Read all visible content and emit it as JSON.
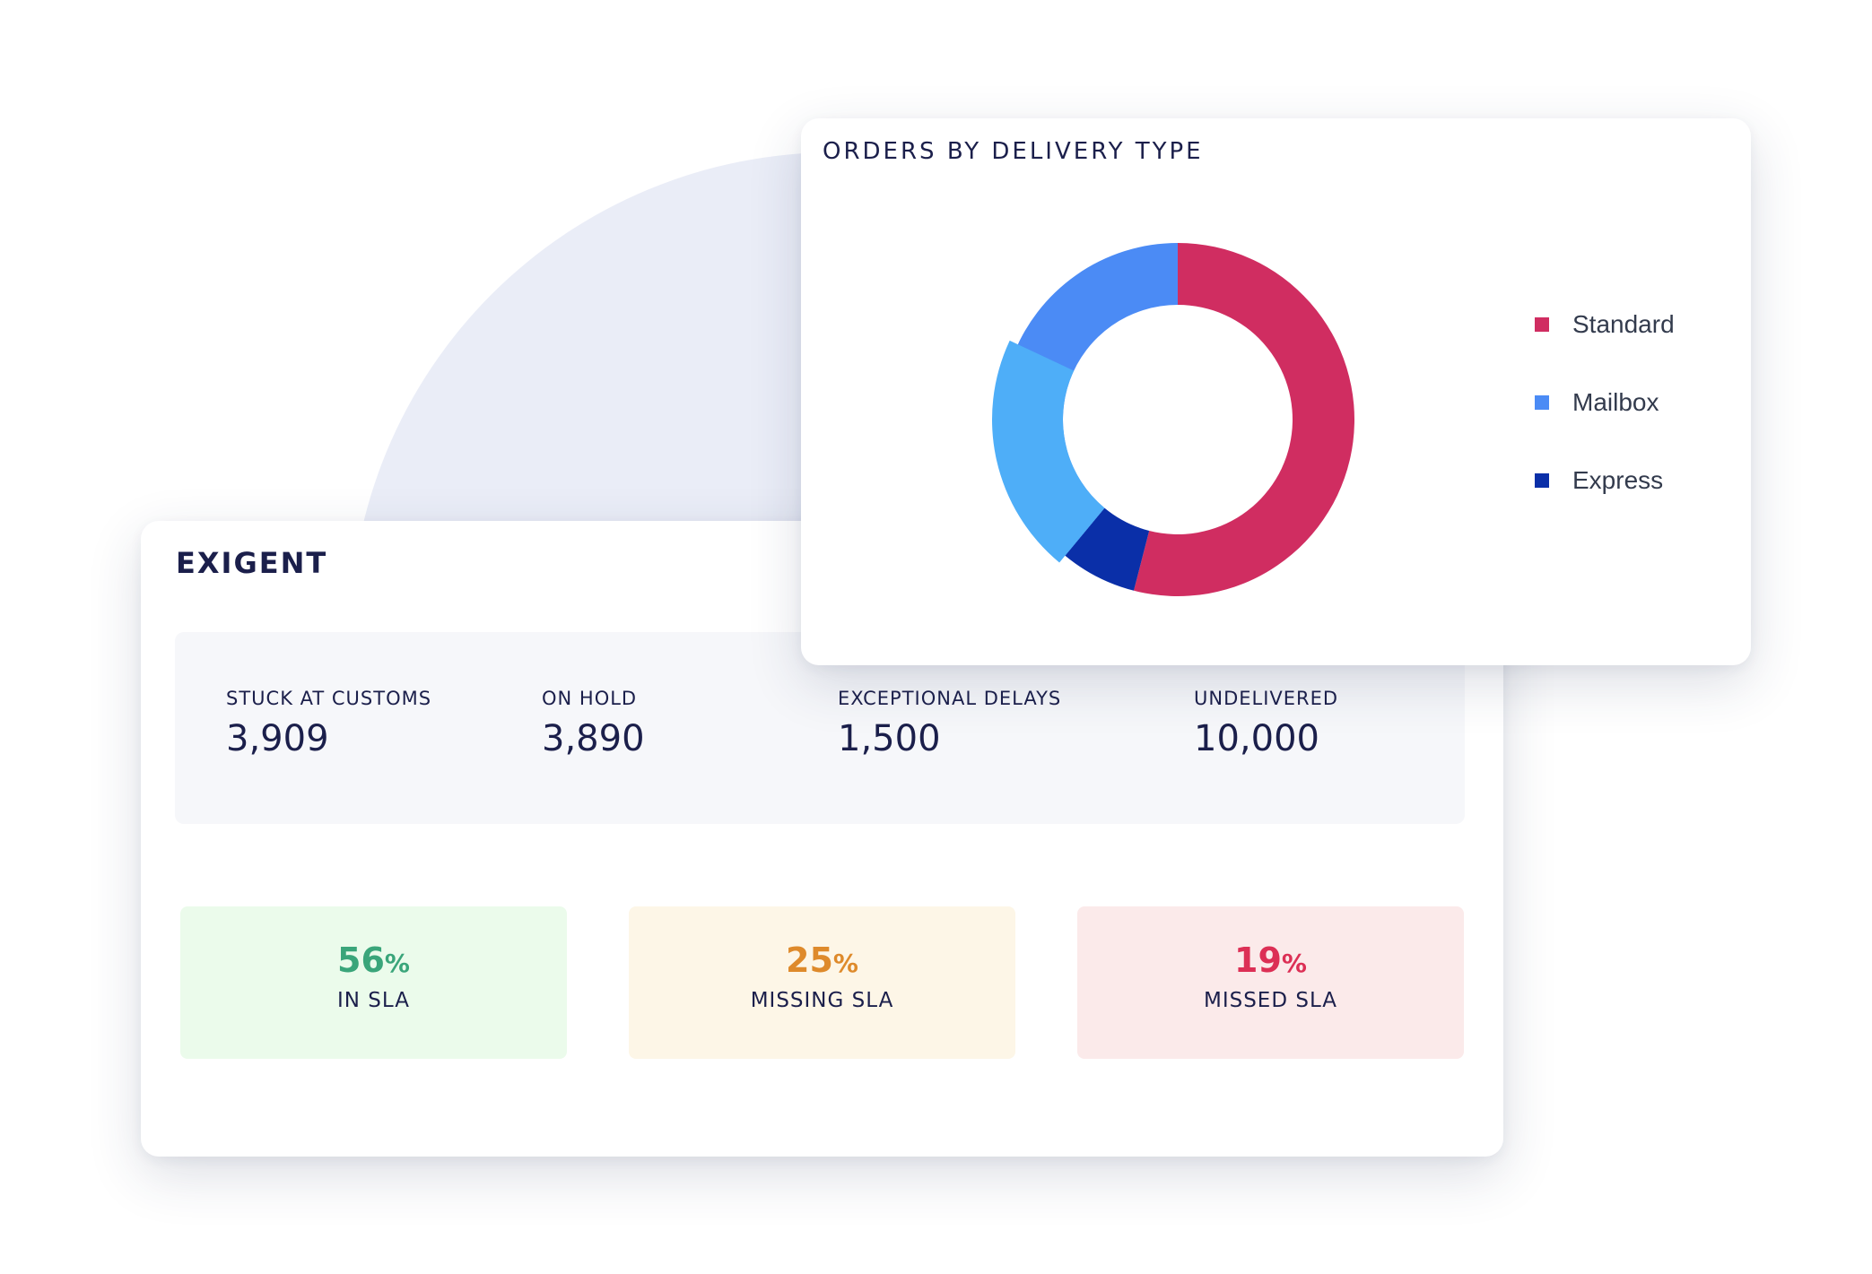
{
  "exigent": {
    "title": "EXIGENT",
    "stats": [
      {
        "label": "STUCK AT CUSTOMS",
        "value": "3,909"
      },
      {
        "label": "ON HOLD",
        "value": "3,890"
      },
      {
        "label": "EXCEPTIONAL DELAYS",
        "value": "1,500"
      },
      {
        "label": "UNDELIVERED",
        "value": "10,000"
      }
    ],
    "sla": [
      {
        "value": "56",
        "unit": "%",
        "label": "IN SLA",
        "color": "#3aa57a",
        "bg": "#ebfbeb"
      },
      {
        "value": "25",
        "unit": "%",
        "label": "MISSING SLA",
        "color": "#de8a2b",
        "bg": "#fdf6e7"
      },
      {
        "value": "19",
        "unit": "%",
        "label": "MISSED SLA",
        "color": "#dc2f55",
        "bg": "#fbeaea"
      }
    ]
  },
  "orders": {
    "title": "ORDERS BY DELIVERY TYPE"
  },
  "chart_data": {
    "type": "pie",
    "title": "ORDERS BY DELIVERY TYPE",
    "donut": true,
    "series": [
      {
        "name": "Standard",
        "value": 54,
        "color": "#d02d61"
      },
      {
        "name": "Express",
        "value": 7,
        "color": "#0a2fa8"
      },
      {
        "name": "Mailbox",
        "value": 39,
        "color": "#4b8bf5"
      }
    ],
    "highlight_segment": {
      "value": 21,
      "color": "#4eaef8"
    },
    "legend": [
      {
        "name": "Standard",
        "color": "#d02d61"
      },
      {
        "name": "Mailbox",
        "color": "#4b8bf5"
      },
      {
        "name": "Express",
        "color": "#0a2fa8"
      }
    ],
    "legend_position": "right"
  }
}
